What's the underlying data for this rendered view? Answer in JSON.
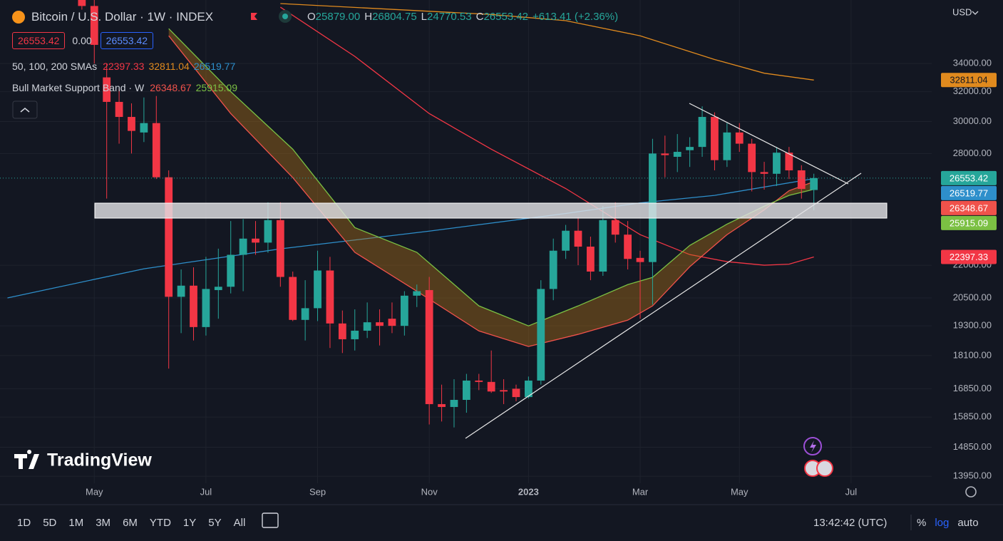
{
  "header": {
    "title": "Bitcoin / U.S. Dollar · 1W · INDEX",
    "ohlc": [
      {
        "key": "O",
        "value": "25879.00"
      },
      {
        "key": "H",
        "value": "26804.75"
      },
      {
        "key": "L",
        "value": "24770.53"
      },
      {
        "key": "C",
        "value": "26553.42"
      }
    ],
    "change": "+613.41 (+2.36%)",
    "bid": "26553.42",
    "spread": "0.00",
    "ask": "26553.42"
  },
  "chart_data": {
    "type": "candlestick",
    "currency": "USD",
    "log_scale": true,
    "grid": true,
    "up_color": "#26a69a",
    "down_color": "#f23645",
    "xlim": [
      -6.6,
      68.5
    ],
    "xticks": [
      {
        "value": 1,
        "label": "May"
      },
      {
        "value": 10,
        "label": "Jul"
      },
      {
        "value": 19,
        "label": "Sep"
      },
      {
        "value": 28,
        "label": "Nov"
      },
      {
        "value": 36,
        "label": "2023"
      },
      {
        "value": 45,
        "label": "Mar"
      },
      {
        "value": 53,
        "label": "May"
      },
      {
        "value": 62,
        "label": "Jul"
      }
    ],
    "ylim": [
      13740,
      39000
    ],
    "yticks": [
      {
        "value": 13950,
        "label": "13950.00"
      },
      {
        "value": 14850,
        "label": "14850.00"
      },
      {
        "value": 15850,
        "label": "15850.00"
      },
      {
        "value": 16850,
        "label": "16850.00"
      },
      {
        "value": 18100,
        "label": "18100.00"
      },
      {
        "value": 19300,
        "label": "19300.00"
      },
      {
        "value": 20500,
        "label": "20500.00"
      },
      {
        "value": 22000,
        "label": "22000.00"
      },
      {
        "value": 28000,
        "label": "28000.00"
      },
      {
        "value": 30000,
        "label": "30000.00"
      },
      {
        "value": 32000,
        "label": "32000.00"
      },
      {
        "value": 34000,
        "label": "34000.00"
      }
    ],
    "open": [
      39800,
      38500,
      33000,
      31300,
      30300,
      29300,
      29900,
      26600,
      20550,
      21050,
      19250,
      20850,
      21000,
      22500,
      23300,
      23100,
      24250,
      21450,
      19550,
      20050,
      21750,
      19400,
      18750,
      19100,
      19450,
      19600,
      19300,
      20600,
      20850,
      16300,
      16200,
      16450,
      17150,
      17100,
      16800,
      16850,
      16550,
      17150,
      20900,
      22700,
      23700,
      22900,
      21700,
      24250,
      23500,
      22350,
      22150,
      28000,
      27800,
      28200,
      28400,
      30300,
      27600,
      29300,
      28600,
      26900,
      26800,
      28050,
      27000,
      25879
    ],
    "high": [
      40500,
      39500,
      34000,
      32200,
      31200,
      31600,
      31700,
      27000,
      21800,
      21900,
      22400,
      22800,
      24200,
      24300,
      24200,
      25200,
      25200,
      21700,
      21300,
      22700,
      22400,
      19950,
      20000,
      20300,
      20000,
      20300,
      20800,
      21100,
      21450,
      17000,
      17200,
      17400,
      17400,
      18300,
      17200,
      17000,
      17300,
      21300,
      23300,
      24000,
      24400,
      23400,
      25000,
      25200,
      24200,
      22700,
      28900,
      29100,
      29200,
      29000,
      31000,
      30600,
      29900,
      29900,
      28900,
      27500,
      28400,
      28400,
      27300,
      26804.75
    ],
    "low": [
      38200,
      34000,
      25400,
      28600,
      28000,
      28700,
      26500,
      17600,
      19000,
      18700,
      18900,
      19600,
      20700,
      20800,
      22500,
      22600,
      21000,
      19500,
      18700,
      19500,
      18400,
      18200,
      18300,
      18800,
      18500,
      19000,
      18900,
      20100,
      15600,
      15700,
      15500,
      16000,
      16800,
      16700,
      16300,
      16400,
      16500,
      17000,
      20400,
      22300,
      22000,
      21300,
      21500,
      23100,
      21800,
      19600,
      20200,
      26600,
      26900,
      27200,
      27800,
      27000,
      27200,
      28100,
      25800,
      25900,
      26100,
      26500,
      25400,
      24770.53
    ],
    "close": [
      38500,
      35400,
      31300,
      30300,
      29400,
      29900,
      26600,
      20550,
      21050,
      19250,
      20900,
      21000,
      22500,
      23300,
      23100,
      24250,
      21450,
      19550,
      20050,
      21750,
      19400,
      18750,
      19100,
      19450,
      19300,
      19300,
      20600,
      20800,
      16300,
      16200,
      16450,
      17150,
      17100,
      16750,
      16750,
      16550,
      17150,
      20900,
      22700,
      23700,
      22900,
      21700,
      24250,
      23500,
      22300,
      22150,
      28000,
      27900,
      28100,
      28400,
      30300,
      27600,
      29300,
      28600,
      26900,
      26800,
      28050,
      27000,
      25940,
      26553.42
    ],
    "indicators": [
      {
        "title": "50, 100, 200 SMAs",
        "series": [
          {
            "color": "#f23645",
            "x": [
              16,
              22,
              28,
              33,
              39,
              45,
              49,
              52,
              55,
              57,
              59
            ],
            "values": [
              38400,
              34530,
              30520,
              28260,
              25960,
              23500,
              22510,
              22170,
              22000,
              22050,
              22397.33
            ]
          },
          {
            "color": "#e08a1e",
            "x": [
              16,
              33,
              39,
              45,
              51,
              55,
              59
            ],
            "values": [
              38700,
              37800,
              37300,
              36100,
              34300,
              33300,
              32811.04
            ]
          },
          {
            "color": "#2e8fcb",
            "x": [
              -6,
              5,
              16,
              28,
              39,
              45,
              51,
              59
            ],
            "values": [
              20500,
              21830,
              22790,
              23680,
              24600,
              25170,
              25580,
              26519.77
            ]
          }
        ]
      },
      {
        "title": "Bull Market Support Band · W",
        "band_fill": "rgba(190,120,20,0.38)",
        "series": [
          {
            "color": "#f0524b",
            "x": [
              7,
              12,
              17,
              22,
              27,
              32,
              36,
              40,
              44,
              46,
              49,
              52,
              55,
              57,
              59
            ],
            "values": [
              36100,
              30520,
              26580,
              22620,
              20800,
              19090,
              18460,
              18950,
              19540,
              20150,
              21930,
              23500,
              24790,
              25840,
              26348.67
            ]
          },
          {
            "color": "#7bc043",
            "x": [
              7,
              12,
              17,
              22,
              27,
              32,
              36,
              40,
              44,
              46,
              49,
              52,
              55,
              57,
              59
            ],
            "values": [
              36660,
              32000,
              28260,
              23860,
              22620,
              20150,
              19300,
              20150,
              21100,
              21430,
              22960,
              24040,
              24990,
              25580,
              25915.09
            ]
          }
        ]
      }
    ]
  },
  "branding": "TradingView",
  "toolbar": {
    "timeframes": [
      "1D",
      "5D",
      "1M",
      "3M",
      "6M",
      "YTD",
      "1Y",
      "5Y",
      "All"
    ],
    "clock": "13:42:42 (UTC)",
    "scale_buttons": [
      {
        "label": "%"
      },
      {
        "label": "log",
        "active": true
      },
      {
        "label": "auto"
      }
    ]
  }
}
